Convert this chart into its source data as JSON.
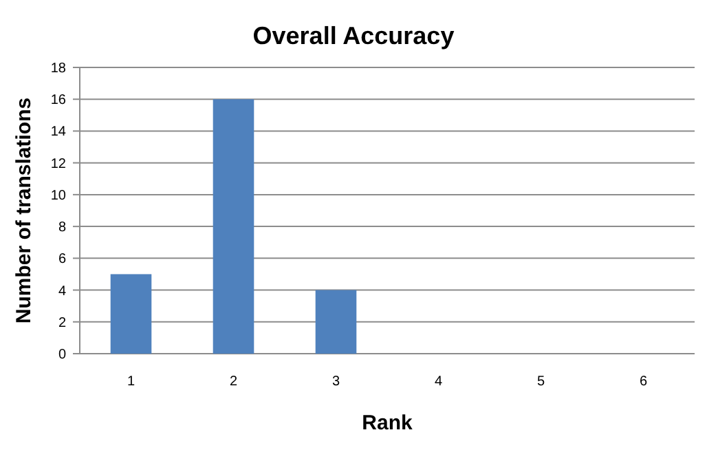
{
  "chart_data": {
    "type": "bar",
    "title": "Overall Accuracy",
    "xlabel": "Rank",
    "ylabel": "Number of translations",
    "categories": [
      "1",
      "2",
      "3",
      "4",
      "5",
      "6"
    ],
    "values": [
      5,
      16,
      4,
      0,
      0,
      0
    ],
    "color": "#4f81bd",
    "ylim": [
      0,
      18
    ],
    "yticks": [
      0,
      2,
      4,
      6,
      8,
      10,
      12,
      14,
      16,
      18
    ],
    "grid": "y"
  }
}
